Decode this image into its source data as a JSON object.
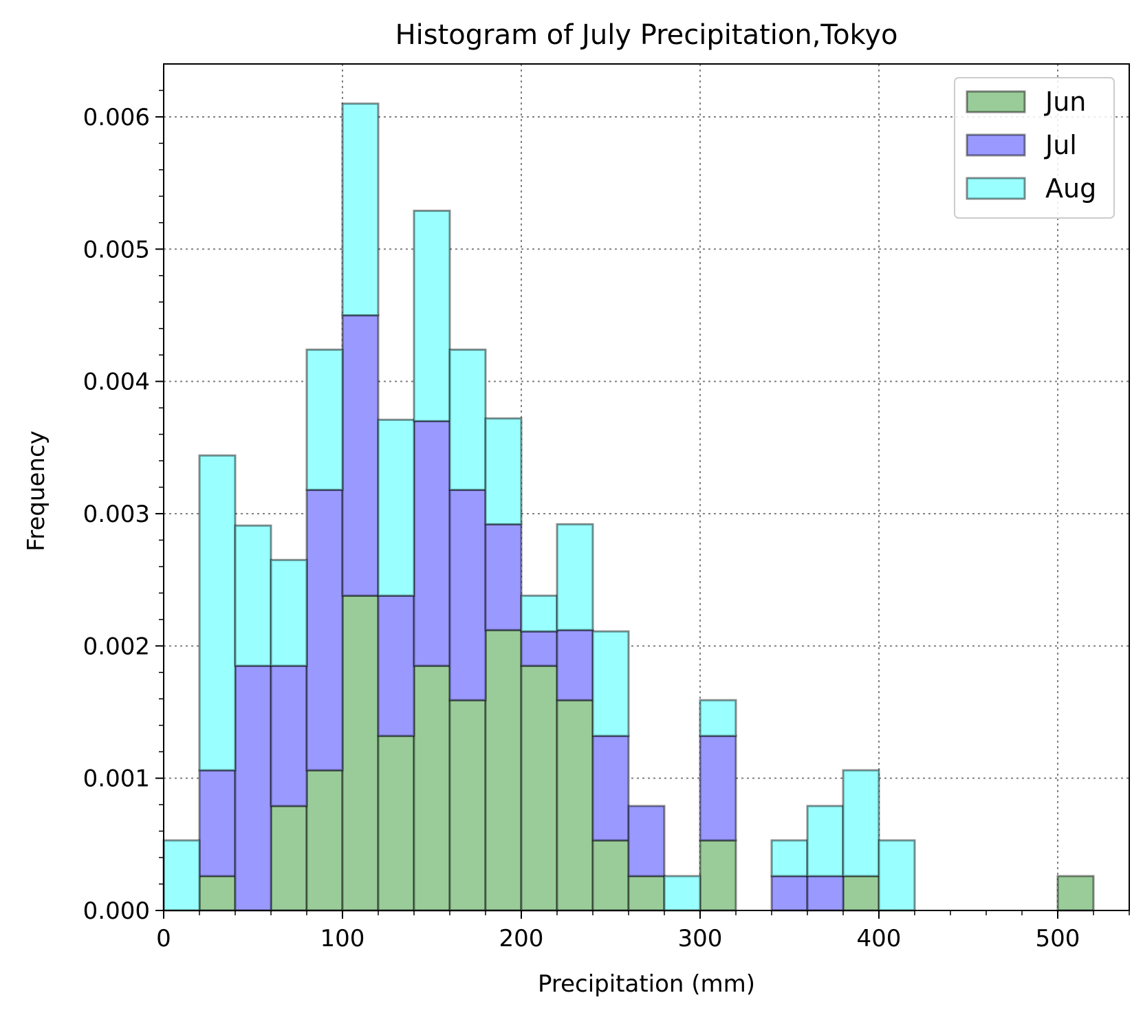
{
  "chart_data": {
    "type": "bar",
    "histogram": true,
    "stacked": true,
    "title": "Histogram of July Precipitation,Tokyo",
    "xlabel": "Precipitation (mm)",
    "ylabel": "Frequency",
    "xlim": [
      0,
      540
    ],
    "ylim": [
      0,
      0.0064
    ],
    "xticks": [
      0,
      100,
      200,
      300,
      400,
      500
    ],
    "xtick_labels": [
      "0",
      "100",
      "200",
      "300",
      "400",
      "500"
    ],
    "yticks": [
      0,
      0.001,
      0.002,
      0.003,
      0.004,
      0.005,
      0.006
    ],
    "ytick_labels": [
      "0.000",
      "0.001",
      "0.002",
      "0.003",
      "0.004",
      "0.005",
      "0.006"
    ],
    "grid": true,
    "legend_position": "top-right",
    "bin_edges": [
      0,
      20,
      40,
      60,
      80,
      100,
      120,
      140,
      160,
      180,
      200,
      220,
      240,
      260,
      280,
      300,
      320,
      340,
      360,
      380,
      400,
      420,
      440,
      460,
      480,
      500,
      520
    ],
    "series": [
      {
        "name": "Jun",
        "color": "#99cc99",
        "values": [
          0,
          0.00026,
          0,
          0.00079,
          0.00106,
          0.00238,
          0.00132,
          0.00185,
          0.00159,
          0.00212,
          0.00185,
          0.00159,
          0.00053,
          0.00026,
          0,
          0.00053,
          0,
          0,
          0,
          0.00026,
          0,
          0,
          0,
          0,
          0,
          0.00026
        ]
      },
      {
        "name": "Jul",
        "color": "#9999ff",
        "values": [
          0,
          0.0008,
          0.00185,
          0.00106,
          0.00212,
          0.00212,
          0.00106,
          0.00185,
          0.00159,
          0.0008,
          0.00026,
          0.00053,
          0.00079,
          0.00053,
          0,
          0.00079,
          0,
          0.00026,
          0.00026,
          0,
          0,
          0,
          0,
          0,
          0,
          0
        ]
      },
      {
        "name": "Aug",
        "color": "#99ffff",
        "values": [
          0.00053,
          0.00238,
          0.00106,
          0.0008,
          0.00106,
          0.0016,
          0.00133,
          0.00159,
          0.00106,
          0.0008,
          0.00027,
          0.0008,
          0.00079,
          0,
          0.00026,
          0.00027,
          0,
          0.00027,
          0.00053,
          0.0008,
          0.00053,
          0,
          0,
          0,
          0,
          0
        ]
      }
    ]
  }
}
